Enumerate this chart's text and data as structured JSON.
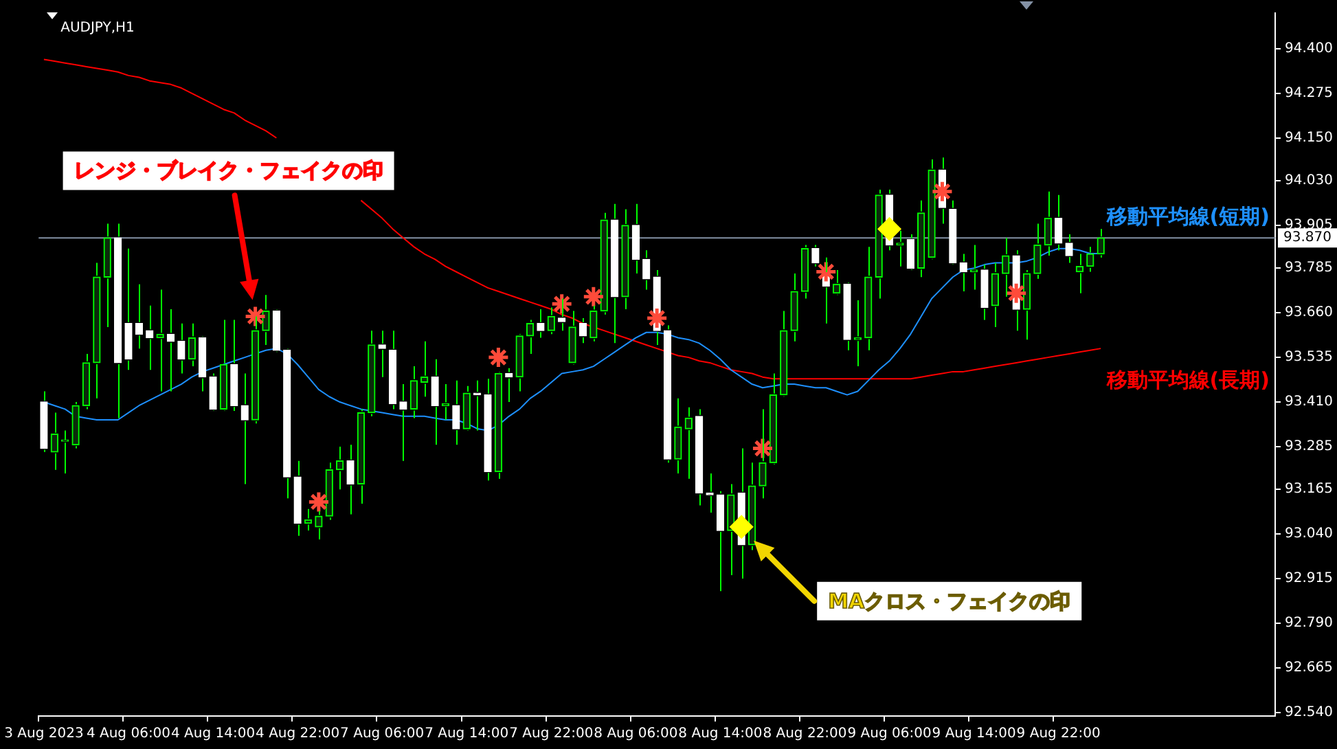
{
  "chart_data": {
    "type": "candlestick",
    "title": "AUDJPY,H1",
    "categories": [
      "3 Aug 2023",
      null,
      null,
      null,
      null,
      null,
      null,
      null,
      "4 Aug 06:00",
      null,
      null,
      null,
      null,
      null,
      null,
      null,
      "4 Aug 14:00",
      null,
      null,
      null,
      null,
      null,
      null,
      null,
      "4 Aug 22:00",
      null,
      null,
      null,
      null,
      null,
      null,
      null,
      "7 Aug 06:00",
      null,
      null,
      null,
      null,
      null,
      null,
      null,
      "7 Aug 14:00",
      null,
      null,
      null,
      null,
      null,
      null,
      null,
      "7 Aug 22:00",
      null,
      null,
      null,
      null,
      null,
      null,
      null,
      "8 Aug 06:00",
      null,
      null,
      null,
      null,
      null,
      null,
      null,
      "8 Aug 14:00",
      null,
      null,
      null,
      null,
      null,
      null,
      null,
      "8 Aug 22:00",
      null,
      null,
      null,
      null,
      null,
      null,
      null,
      "9 Aug 06:00",
      null,
      null,
      null,
      null,
      null,
      null,
      null,
      "9 Aug 14:00",
      null,
      null,
      null,
      null,
      null,
      null,
      null,
      "9 Aug 22:00",
      null,
      null,
      null,
      null
    ],
    "ohlc": [
      [
        93.41,
        93.44,
        93.27,
        93.28
      ],
      [
        93.27,
        93.38,
        93.22,
        93.32
      ],
      [
        93.3,
        93.33,
        93.21,
        93.3
      ],
      [
        93.29,
        93.41,
        93.28,
        93.4
      ],
      [
        93.4,
        93.545,
        93.39,
        93.52
      ],
      [
        93.52,
        93.8,
        93.42,
        93.76
      ],
      [
        93.76,
        93.91,
        93.62,
        93.87
      ],
      [
        93.87,
        93.91,
        93.365,
        93.52
      ],
      [
        93.63,
        93.84,
        93.5,
        93.53
      ],
      [
        93.63,
        93.74,
        93.56,
        93.6
      ],
      [
        93.61,
        93.68,
        93.5,
        93.59
      ],
      [
        93.59,
        93.725,
        93.44,
        93.6
      ],
      [
        93.6,
        93.67,
        93.44,
        93.58
      ],
      [
        93.58,
        93.63,
        93.49,
        93.53
      ],
      [
        93.53,
        93.63,
        93.51,
        93.59
      ],
      [
        93.59,
        93.595,
        93.44,
        93.48
      ],
      [
        93.48,
        93.49,
        93.385,
        93.39
      ],
      [
        93.39,
        93.64,
        93.385,
        93.515
      ],
      [
        93.515,
        93.64,
        93.385,
        93.4
      ],
      [
        93.4,
        93.49,
        93.18,
        93.36
      ],
      [
        93.36,
        93.65,
        93.35,
        93.61
      ],
      [
        93.61,
        93.71,
        93.57,
        93.665
      ],
      [
        93.665,
        93.67,
        93.55,
        93.555
      ],
      [
        93.555,
        93.56,
        93.14,
        93.2
      ],
      [
        93.2,
        93.245,
        93.035,
        93.07
      ],
      [
        93.07,
        93.11,
        93.05,
        93.08
      ],
      [
        93.06,
        93.105,
        93.025,
        93.09
      ],
      [
        93.09,
        93.24,
        93.08,
        93.22
      ],
      [
        93.22,
        93.285,
        93.165,
        93.245
      ],
      [
        93.245,
        93.29,
        93.095,
        93.18
      ],
      [
        93.18,
        93.39,
        93.125,
        93.38
      ],
      [
        93.38,
        93.61,
        93.37,
        93.57
      ],
      [
        93.57,
        93.61,
        93.48,
        93.56
      ],
      [
        93.555,
        93.61,
        93.39,
        93.405
      ],
      [
        93.41,
        93.46,
        93.245,
        93.39
      ],
      [
        93.39,
        93.51,
        93.365,
        93.47
      ],
      [
        93.465,
        93.58,
        93.425,
        93.48
      ],
      [
        93.48,
        93.53,
        93.29,
        93.4
      ],
      [
        93.4,
        93.46,
        93.36,
        93.405
      ],
      [
        93.4,
        93.47,
        93.29,
        93.335
      ],
      [
        93.335,
        93.455,
        93.33,
        93.435
      ],
      [
        93.435,
        93.47,
        93.33,
        93.43
      ],
      [
        93.43,
        93.475,
        93.19,
        93.215
      ],
      [
        93.215,
        93.495,
        93.195,
        93.49
      ],
      [
        93.49,
        93.505,
        93.41,
        93.48
      ],
      [
        93.48,
        93.6,
        93.44,
        93.595
      ],
      [
        93.595,
        93.64,
        93.545,
        93.63
      ],
      [
        93.63,
        93.67,
        93.59,
        93.61
      ],
      [
        93.61,
        93.675,
        93.6,
        93.65
      ],
      [
        93.645,
        93.7,
        93.61,
        93.635
      ],
      [
        93.52,
        93.665,
        93.515,
        93.62
      ],
      [
        93.63,
        93.645,
        93.575,
        93.595
      ],
      [
        93.59,
        93.68,
        93.58,
        93.665
      ],
      [
        93.665,
        93.94,
        93.655,
        93.92
      ],
      [
        93.92,
        93.965,
        93.575,
        93.705
      ],
      [
        93.705,
        93.95,
        93.67,
        93.905
      ],
      [
        93.905,
        93.965,
        93.77,
        93.81
      ],
      [
        93.81,
        93.835,
        93.725,
        93.755
      ],
      [
        93.76,
        93.78,
        93.57,
        93.61
      ],
      [
        93.61,
        93.625,
        93.24,
        93.25
      ],
      [
        93.25,
        93.42,
        93.21,
        93.34
      ],
      [
        93.335,
        93.395,
        93.195,
        93.365
      ],
      [
        93.37,
        93.39,
        93.12,
        93.155
      ],
      [
        93.155,
        93.21,
        93.1,
        93.15
      ],
      [
        93.15,
        93.16,
        92.88,
        93.05
      ],
      [
        93.05,
        93.18,
        92.925,
        93.15
      ],
      [
        93.155,
        93.28,
        92.915,
        93.01
      ],
      [
        93.01,
        93.24,
        92.995,
        93.175
      ],
      [
        93.175,
        93.39,
        93.14,
        93.24
      ],
      [
        93.24,
        93.49,
        93.235,
        93.43
      ],
      [
        93.43,
        93.665,
        93.425,
        93.61
      ],
      [
        93.61,
        93.77,
        93.58,
        93.72
      ],
      [
        93.72,
        93.85,
        93.7,
        93.84
      ],
      [
        93.84,
        93.85,
        93.79,
        93.8
      ],
      [
        93.77,
        93.815,
        93.63,
        93.735
      ],
      [
        93.715,
        93.78,
        93.71,
        93.74
      ],
      [
        93.74,
        93.745,
        93.555,
        93.585
      ],
      [
        93.585,
        93.695,
        93.51,
        93.59
      ],
      [
        93.59,
        93.845,
        93.555,
        93.76
      ],
      [
        93.76,
        94.005,
        93.7,
        93.99
      ],
      [
        93.99,
        94.005,
        93.835,
        93.85
      ],
      [
        93.85,
        93.89,
        93.79,
        93.855
      ],
      [
        93.865,
        93.88,
        93.78,
        93.785
      ],
      [
        93.785,
        93.975,
        93.76,
        93.94
      ],
      [
        93.815,
        94.09,
        93.81,
        94.06
      ],
      [
        94.06,
        94.095,
        93.91,
        93.955
      ],
      [
        93.95,
        93.975,
        93.795,
        93.8
      ],
      [
        93.8,
        93.825,
        93.72,
        93.775
      ],
      [
        93.775,
        93.85,
        93.725,
        93.78
      ],
      [
        93.78,
        93.795,
        93.64,
        93.675
      ],
      [
        93.68,
        93.8,
        93.62,
        93.77
      ],
      [
        93.77,
        93.87,
        93.705,
        93.82
      ],
      [
        93.82,
        93.835,
        93.61,
        93.67
      ],
      [
        93.67,
        93.78,
        93.585,
        93.77
      ],
      [
        93.77,
        93.91,
        93.755,
        93.85
      ],
      [
        93.85,
        94.0,
        93.82,
        93.925
      ],
      [
        93.925,
        93.99,
        93.835,
        93.855
      ],
      [
        93.855,
        93.88,
        93.8,
        93.82
      ],
      [
        93.775,
        93.825,
        93.715,
        93.79
      ],
      [
        93.79,
        93.845,
        93.775,
        93.825
      ],
      [
        93.825,
        93.895,
        93.815,
        93.87
      ]
    ],
    "series": [
      {
        "name": "移動平均線(短期)",
        "type": "line",
        "marker": "none",
        "color": "#1e90ff",
        "values": [
          93.41,
          93.4,
          93.39,
          93.37,
          93.365,
          93.36,
          93.36,
          93.36,
          93.38,
          93.4,
          93.415,
          93.43,
          93.445,
          93.46,
          93.48,
          93.495,
          93.505,
          93.515,
          93.525,
          93.535,
          93.545,
          93.555,
          93.56,
          93.545,
          93.515,
          93.48,
          93.445,
          93.425,
          93.41,
          93.4,
          93.39,
          93.385,
          93.38,
          93.375,
          93.37,
          93.37,
          93.37,
          93.365,
          93.36,
          93.36,
          93.35,
          93.335,
          93.33,
          93.345,
          93.37,
          93.39,
          93.42,
          93.44,
          93.465,
          93.49,
          93.495,
          93.5,
          93.51,
          93.53,
          93.55,
          93.57,
          93.59,
          93.605,
          93.605,
          93.6,
          93.59,
          93.585,
          93.575,
          93.555,
          93.53,
          93.5,
          93.48,
          93.46,
          93.45,
          93.455,
          93.46,
          93.46,
          93.455,
          93.45,
          93.45,
          93.44,
          93.43,
          93.44,
          93.47,
          93.5,
          93.525,
          93.56,
          93.6,
          93.65,
          93.7,
          93.73,
          93.76,
          93.78,
          93.785,
          93.795,
          93.8,
          93.8,
          93.8,
          93.805,
          93.815,
          93.83,
          93.84,
          93.84,
          93.835,
          93.826,
          93.826
        ]
      },
      {
        "name": "移動平均線(長期)",
        "type": "line",
        "marker": "none",
        "color": "#ff0000",
        "values": [
          94.37,
          94.365,
          94.36,
          94.355,
          94.35,
          94.345,
          94.34,
          94.335,
          94.325,
          94.32,
          94.31,
          94.305,
          94.3,
          94.29,
          94.275,
          94.26,
          94.245,
          94.23,
          94.22,
          94.2,
          94.185,
          94.17,
          94.15,
          null,
          null,
          null,
          null,
          null,
          null,
          null,
          93.975,
          93.95,
          93.925,
          93.895,
          93.87,
          93.845,
          93.825,
          93.81,
          93.79,
          93.775,
          93.76,
          93.745,
          93.73,
          93.72,
          93.71,
          93.7,
          93.69,
          93.68,
          93.67,
          93.655,
          93.645,
          93.63,
          93.62,
          93.61,
          93.6,
          93.59,
          93.58,
          93.57,
          93.56,
          93.55,
          93.54,
          93.535,
          93.525,
          93.52,
          93.51,
          93.5,
          93.495,
          93.49,
          93.48,
          93.475,
          93.475,
          93.475,
          93.475,
          93.475,
          93.475,
          93.475,
          93.475,
          93.475,
          93.475,
          93.475,
          93.475,
          93.475,
          93.475,
          93.48,
          93.485,
          93.49,
          93.495,
          93.495,
          93.5,
          93.505,
          93.51,
          93.515,
          93.52,
          93.525,
          93.53,
          93.535,
          93.54,
          93.545,
          93.55,
          93.555,
          93.56
        ]
      },
      {
        "type": "scatter",
        "marker": "cross",
        "color": "#ff4b3a",
        "values": [
          null,
          null,
          null,
          null,
          null,
          null,
          null,
          null,
          null,
          null,
          null,
          null,
          null,
          null,
          null,
          null,
          null,
          null,
          null,
          null,
          93.65,
          null,
          null,
          null,
          null,
          null,
          93.13,
          null,
          null,
          null,
          null,
          null,
          null,
          null,
          null,
          null,
          null,
          null,
          null,
          null,
          null,
          null,
          null,
          93.535,
          null,
          null,
          null,
          null,
          null,
          93.685,
          null,
          null,
          93.705,
          null,
          null,
          null,
          null,
          null,
          93.645,
          null,
          null,
          null,
          null,
          null,
          null,
          null,
          null,
          null,
          93.28,
          null,
          null,
          null,
          null,
          null,
          93.775,
          null,
          null,
          null,
          null,
          null,
          null,
          null,
          null,
          null,
          null,
          94.0,
          null,
          null,
          null,
          null,
          null,
          null,
          93.715,
          null,
          null,
          null,
          null,
          null,
          null,
          null,
          null
        ]
      },
      {
        "type": "scatter",
        "marker": "diamond",
        "color": "#ffff00",
        "values": [
          null,
          null,
          null,
          null,
          null,
          null,
          null,
          null,
          null,
          null,
          null,
          null,
          null,
          null,
          null,
          null,
          null,
          null,
          null,
          null,
          null,
          null,
          null,
          null,
          null,
          null,
          null,
          null,
          null,
          null,
          null,
          null,
          null,
          null,
          null,
          null,
          null,
          null,
          null,
          null,
          null,
          null,
          null,
          null,
          null,
          null,
          null,
          null,
          null,
          null,
          null,
          null,
          null,
          null,
          null,
          null,
          null,
          null,
          null,
          null,
          null,
          null,
          null,
          null,
          null,
          null,
          93.06,
          null,
          null,
          null,
          null,
          null,
          null,
          null,
          null,
          null,
          null,
          null,
          null,
          null,
          93.895,
          null,
          null,
          null,
          null,
          null,
          null,
          null,
          null,
          null,
          null,
          null,
          null,
          null,
          null,
          null,
          null,
          null,
          null,
          null,
          null
        ]
      }
    ],
    "ylim": [
      92.53,
      94.5
    ],
    "yticks": [
      {
        "value": 94.4,
        "label": "94.400"
      },
      {
        "value": 94.275,
        "label": "94.275"
      },
      {
        "value": 94.15,
        "label": "94.150"
      },
      {
        "value": 94.03,
        "label": "94.030"
      },
      {
        "value": 93.905,
        "label": "93.905"
      },
      {
        "value": 93.785,
        "label": "93.785"
      },
      {
        "value": 93.66,
        "label": "93.660"
      },
      {
        "value": 93.535,
        "label": "93.535"
      },
      {
        "value": 93.41,
        "label": "93.410"
      },
      {
        "value": 93.285,
        "label": "93.285"
      },
      {
        "value": 93.165,
        "label": "93.165"
      },
      {
        "value": 93.04,
        "label": "93.040"
      },
      {
        "value": 92.915,
        "label": "92.915"
      },
      {
        "value": 92.79,
        "label": "92.790"
      },
      {
        "value": 92.665,
        "label": "92.665"
      },
      {
        "value": 92.54,
        "label": "92.540"
      }
    ],
    "ref_lines": [
      {
        "axis": "y",
        "value": 93.87,
        "label": "93.870",
        "color": "#8391a5"
      }
    ],
    "annotations": [
      "レンジ・ブレイク・フェイクの印",
      "MAクロス・フェイクの印"
    ],
    "grid": false,
    "legend": false
  }
}
